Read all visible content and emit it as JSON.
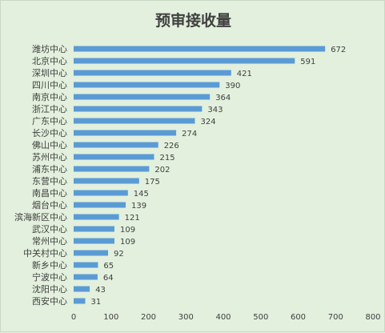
{
  "chart_data": {
    "type": "bar",
    "orientation": "horizontal",
    "title": "预审接收量",
    "xlabel": "",
    "ylabel": "",
    "categories": [
      "潍坊中心",
      "北京中心",
      "深圳中心",
      "四川中心",
      "南京中心",
      "浙江中心",
      "广东中心",
      "长沙中心",
      "佛山中心",
      "苏州中心",
      "浦东中心",
      "东营中心",
      "南昌中心",
      "烟台中心",
      "滨海新区中心",
      "武汉中心",
      "常州中心",
      "中关村中心",
      "新乡中心",
      "宁波中心",
      "沈阳中心",
      "西安中心"
    ],
    "values": [
      672,
      591,
      421,
      390,
      364,
      343,
      324,
      274,
      226,
      215,
      202,
      175,
      145,
      139,
      121,
      109,
      109,
      92,
      65,
      64,
      43,
      31
    ],
    "xlim": [
      0,
      800
    ],
    "xticks": [
      0,
      100,
      200,
      300,
      400,
      500,
      600,
      700,
      800
    ],
    "grid": false,
    "legend": "none",
    "bar_color": "#5b9bd5",
    "background_color": "#e2f0dd"
  }
}
